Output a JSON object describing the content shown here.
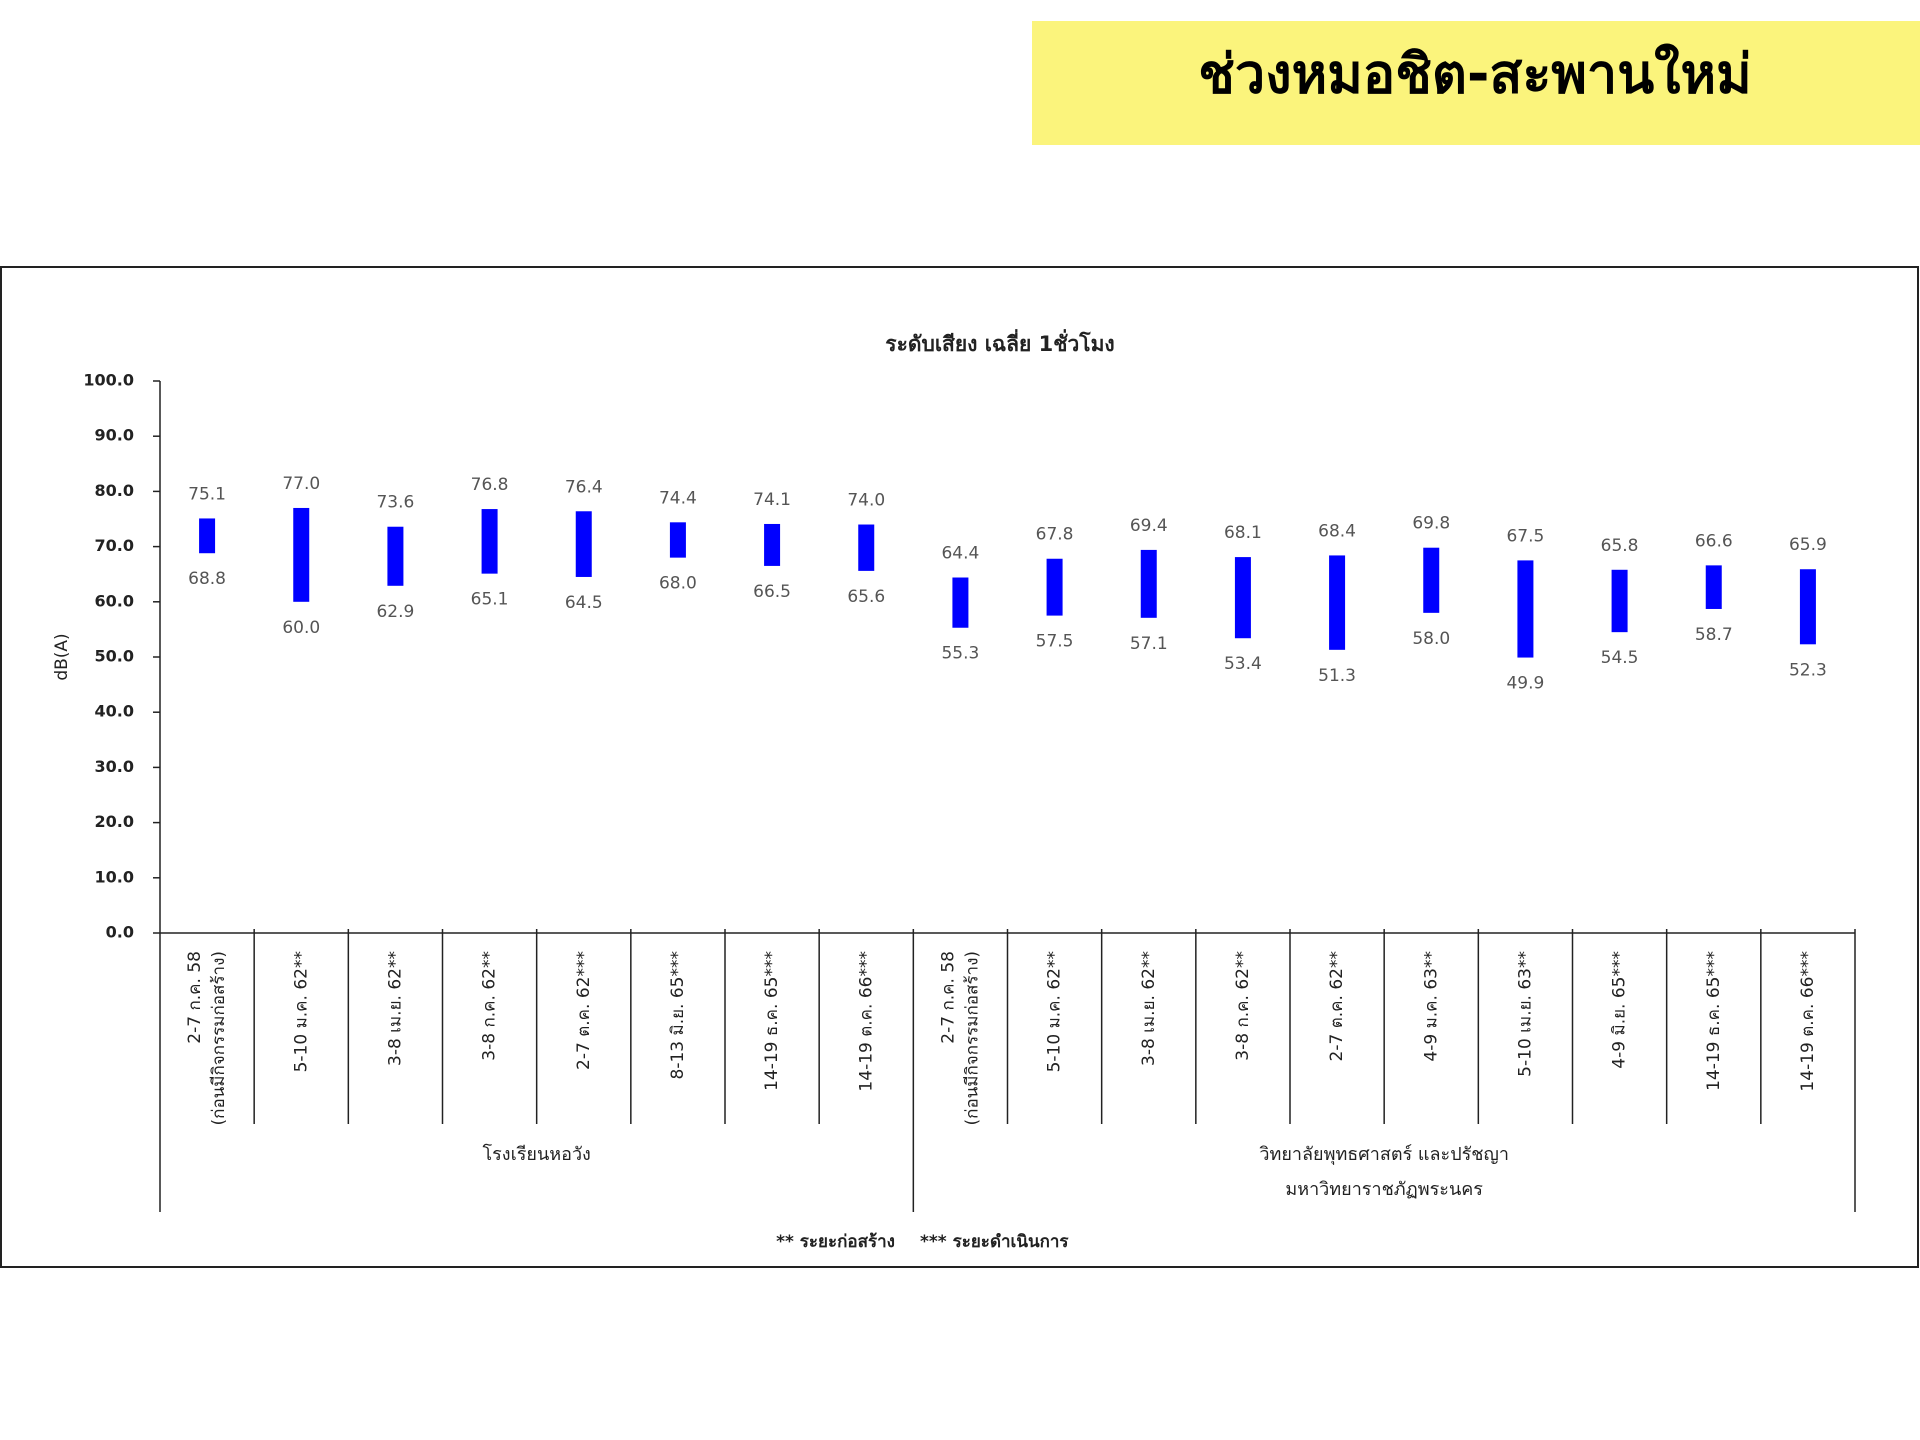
{
  "slide_title": "ช่วงหมอชิต-สะพานใหม่",
  "chart_data": {
    "type": "range-bar",
    "title": "ระดับเสียง เฉลี่ย 1ชั่วโมง",
    "y_label": "dB(A)",
    "color": "#0000ff",
    "ylim": [
      0,
      100
    ],
    "yticks": [
      {
        "value": 0,
        "label": "0.0"
      },
      {
        "value": 10,
        "label": "10.0"
      },
      {
        "value": 20,
        "label": "20.0"
      },
      {
        "value": 30,
        "label": "30.0"
      },
      {
        "value": 40,
        "label": "40.0"
      },
      {
        "value": 50,
        "label": "50.0"
      },
      {
        "value": 60,
        "label": "60.0"
      },
      {
        "value": 70,
        "label": "70.0"
      },
      {
        "value": 80,
        "label": "80.0"
      },
      {
        "value": 90,
        "label": "90.0"
      },
      {
        "value": 100,
        "label": "100.0"
      }
    ],
    "groups": [
      {
        "label": [
          "โรงเรียนหอวัง"
        ],
        "categories": [
          [
            "2-7 ก.ค. 58",
            "(ก่อนมีกิจกรรมก่อสร้าง)"
          ],
          [
            "5-10 ม.ค. 62**"
          ],
          [
            "3-8 เม.ย. 62**"
          ],
          [
            "3-8 ก.ค. 62**"
          ],
          [
            "2-7 ต.ค. 62***"
          ],
          [
            "8-13 มิ.ย. 65***"
          ],
          [
            "14-19 ธ.ค. 65***"
          ],
          [
            "14-19 ต.ค. 66***"
          ]
        ],
        "high": {
          "values": [
            75.1,
            77,
            73.6,
            76.8,
            76.4,
            74.4,
            74.1,
            74
          ],
          "value_labels": [
            "75.1",
            "77.0",
            "73.6",
            "76.8",
            "76.4",
            "74.4",
            "74.1",
            "74.0"
          ]
        },
        "low": {
          "values": [
            68.8,
            60,
            62.9,
            65.1,
            64.5,
            68,
            66.5,
            65.6
          ],
          "value_labels": [
            "68.8",
            "60.0",
            "62.9",
            "65.1",
            "64.5",
            "68.0",
            "66.5",
            "65.6"
          ]
        }
      },
      {
        "label": [
          "วิทยาลัยพุทธศาสตร์ และปรัชญา",
          "มหาวิทยาราชภัฏพระนคร"
        ],
        "categories": [
          [
            "2-7 ก.ค. 58",
            "(ก่อนมีกิจกรรมก่อสร้าง)"
          ],
          [
            "5-10 ม.ค. 62**"
          ],
          [
            "3-8 เม.ย. 62**"
          ],
          [
            "3-8 ก.ค. 62**"
          ],
          [
            "2-7 ต.ค. 62**"
          ],
          [
            "4-9 ม.ค. 63**"
          ],
          [
            "5-10 เม.ย. 63**"
          ],
          [
            "4-9 มิ.ย. 65***"
          ],
          [
            "14-19 ธ.ค. 65***"
          ],
          [
            "14-19 ต.ค. 66***"
          ]
        ],
        "high": {
          "values": [
            64.4,
            67.8,
            69.4,
            68.1,
            68.4,
            69.8,
            67.5,
            65.8,
            66.6,
            65.9
          ],
          "value_labels": [
            "64.4",
            "67.8",
            "69.4",
            "68.1",
            "68.4",
            "69.8",
            "67.5",
            "65.8",
            "66.6",
            "65.9"
          ]
        },
        "low": {
          "values": [
            55.3,
            57.5,
            57.1,
            53.4,
            51.3,
            58,
            49.9,
            54.5,
            58.7,
            52.3
          ],
          "value_labels": [
            "55.3",
            "57.5",
            "57.1",
            "53.4",
            "51.3",
            "58.0",
            "49.9",
            "54.5",
            "58.7",
            "52.3"
          ]
        }
      }
    ],
    "footnotes": [
      "** ระยะก่อสร้าง",
      "*** ระยะดำเนินการ"
    ]
  }
}
